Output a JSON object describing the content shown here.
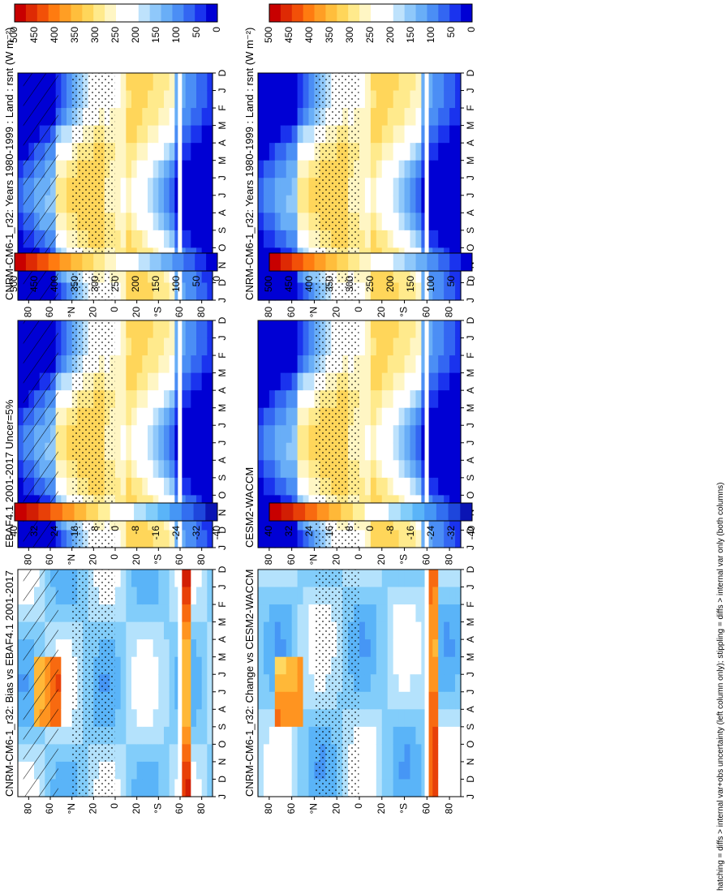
{
  "figure": {
    "footnote": "hatching = diffs > internal var+obs uncertainty (left column only); stippling = diffs > internal var only (both columns)"
  },
  "colors": {
    "abs_scale": [
      "#0000d4",
      "#1a33ee",
      "#3366f2",
      "#4b8ef5",
      "#69aef7",
      "#8fc8fa",
      "#bee2fc",
      "#ffffff",
      "#ffffff",
      "#fff6c4",
      "#ffea8c",
      "#ffd65a",
      "#ffbe3c",
      "#ff9e24",
      "#ff7b10",
      "#f25008",
      "#de2a04",
      "#c80000"
    ],
    "diff_scale": [
      "#0a14b4",
      "#1e46dc",
      "#326ef0",
      "#4696f5",
      "#5ab4f8",
      "#82cdfa",
      "#b4e2fc",
      "#ffffff",
      "#ffffff",
      "#fff09a",
      "#ffd860",
      "#ffb838",
      "#ff9420",
      "#f86a10",
      "#e84008",
      "#d21e04",
      "#c80000"
    ],
    "hatch": "#000000",
    "stipple": "#000000"
  },
  "chart_data": [
    {
      "id": "panel-a",
      "type": "heatmap",
      "title": "CNRM-CM6-1_r32: Years 1980-1999 : Land : rsnt (W m⁻²)",
      "x_ticks": [
        "D",
        "J",
        "F",
        "M",
        "A",
        "M",
        "J",
        "J",
        "A",
        "S",
        "O",
        "N",
        "D",
        "J"
      ],
      "lat_ticks": [
        "80",
        "60",
        "°N",
        "20",
        "0",
        "20",
        "°S",
        "60",
        "80"
      ],
      "field": "rsnt",
      "ylim": [
        -90,
        90
      ],
      "colorbar": {
        "labels": [
          "500",
          "450",
          "400",
          "350",
          "300",
          "250",
          "200",
          "150",
          "100",
          "50",
          "0"
        ],
        "vmin": 0,
        "vmax": 500,
        "scale": "abs"
      },
      "hatching": true,
      "stippling": true
    },
    {
      "id": "panel-b",
      "type": "heatmap",
      "title": "CNRM-CM6-1_r32: Years 1980-1999 : Land : rsnt (W m⁻²)",
      "x_ticks": [
        "D",
        "J",
        "F",
        "M",
        "A",
        "M",
        "J",
        "J",
        "A",
        "S",
        "O",
        "N",
        "D",
        "J"
      ],
      "lat_ticks": [
        "80",
        "60",
        "°N",
        "20",
        "0",
        "20",
        "°S",
        "60",
        "80"
      ],
      "field": "rsnt",
      "ylim": [
        -90,
        90
      ],
      "colorbar": {
        "labels": [
          "500",
          "450",
          "400",
          "350",
          "300",
          "250",
          "200",
          "150",
          "100",
          "50",
          "0"
        ],
        "vmin": 0,
        "vmax": 500,
        "scale": "abs"
      },
      "hatching": false,
      "stippling": true
    },
    {
      "id": "panel-c",
      "type": "heatmap",
      "title": "EBAF4.1 2001-2017 Uncer=5%",
      "x_ticks": [
        "D",
        "J",
        "F",
        "M",
        "A",
        "M",
        "J",
        "J",
        "A",
        "S",
        "O",
        "N",
        "D",
        "J"
      ],
      "lat_ticks": [
        "80",
        "60",
        "°N",
        "20",
        "0",
        "20",
        "°S",
        "60",
        "80"
      ],
      "field": "rsnt",
      "ylim": [
        -90,
        90
      ],
      "colorbar": {
        "labels": [
          "500",
          "450",
          "400",
          "350",
          "300",
          "250",
          "200",
          "150",
          "100",
          "50",
          "0"
        ],
        "vmin": 0,
        "vmax": 500,
        "scale": "abs"
      },
      "hatching": true,
      "stippling": true
    },
    {
      "id": "panel-d",
      "type": "heatmap",
      "title": "CESM2-WACCM",
      "x_ticks": [
        "D",
        "J",
        "F",
        "M",
        "A",
        "M",
        "J",
        "J",
        "A",
        "S",
        "O",
        "N",
        "D",
        "J"
      ],
      "lat_ticks": [
        "80",
        "60",
        "°N",
        "20",
        "0",
        "20",
        "°S",
        "60",
        "80"
      ],
      "field": "rsnt",
      "ylim": [
        -90,
        90
      ],
      "colorbar": {
        "labels": [
          "500",
          "450",
          "400",
          "350",
          "300",
          "250",
          "200",
          "150",
          "100",
          "50",
          "0"
        ],
        "vmin": 0,
        "vmax": 500,
        "scale": "abs"
      },
      "hatching": false,
      "stippling": true
    },
    {
      "id": "panel-e",
      "type": "heatmap",
      "title": "CNRM-CM6-1_r32: Bias vs EBAF4.1 2001-2017",
      "x_ticks": [
        "D",
        "J",
        "F",
        "M",
        "A",
        "M",
        "J",
        "J",
        "A",
        "S",
        "O",
        "N",
        "D",
        "J"
      ],
      "lat_ticks": [
        "80",
        "60",
        "°N",
        "20",
        "0",
        "20",
        "°S",
        "60",
        "80"
      ],
      "field": "diff",
      "ylim": [
        -90,
        90
      ],
      "colorbar": {
        "labels": [
          "40",
          "32",
          "24",
          "16",
          "8",
          "0",
          "-8",
          "-16",
          "-24",
          "-32",
          "-40"
        ],
        "vmin": -40,
        "vmax": 40,
        "scale": "diff"
      },
      "hatching": true,
      "stippling": true
    },
    {
      "id": "panel-f",
      "type": "heatmap",
      "title": "CNRM-CM6-1_r32: Change vs CESM2-WACCM",
      "x_ticks": [
        "D",
        "J",
        "F",
        "M",
        "A",
        "M",
        "J",
        "J",
        "A",
        "S",
        "O",
        "N",
        "D",
        "J"
      ],
      "lat_ticks": [
        "80",
        "60",
        "°N",
        "20",
        "0",
        "20",
        "°S",
        "60",
        "80"
      ],
      "field": "diff",
      "ylim": [
        -90,
        90
      ],
      "colorbar": {
        "labels": [
          "40",
          "32",
          "24",
          "16",
          "8",
          "0",
          "-8",
          "-16",
          "-24",
          "-32",
          "-40"
        ],
        "vmin": -40,
        "vmax": 40,
        "scale": "diff"
      },
      "hatching": false,
      "stippling": true
    }
  ]
}
